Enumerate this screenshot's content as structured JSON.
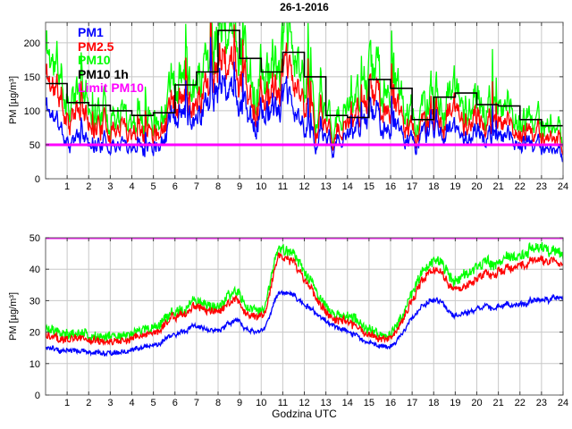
{
  "style": {
    "background": "#ffffff",
    "grid_color": "#c8c8c8",
    "axis_color": "#606060",
    "tick_color": "#404040",
    "text_color": "#000000"
  },
  "chart_data": [
    {
      "type": "line",
      "title": "26-1-2016",
      "ylabel": "PM [µg/m³]",
      "xlabel": "",
      "xlim": [
        0,
        24
      ],
      "ylim": [
        0,
        230
      ],
      "xticks": [
        1,
        2,
        3,
        4,
        5,
        6,
        7,
        8,
        9,
        10,
        11,
        12,
        13,
        14,
        15,
        16,
        17,
        18,
        19,
        20,
        21,
        22,
        23,
        24
      ],
      "yticks": [
        0,
        50,
        100,
        150,
        200
      ],
      "grid": true,
      "legend": [
        "PM1",
        "PM2.5",
        "PM10",
        "PM10 1h",
        "Limit PM10"
      ],
      "legend_position": "upper-left",
      "x_hours": [
        0,
        1,
        2,
        3,
        4,
        5,
        6,
        7,
        8,
        9,
        10,
        11,
        12,
        13,
        14,
        15,
        16,
        17,
        18,
        19,
        20,
        21,
        22,
        23,
        24
      ],
      "series": [
        {
          "name": "PM1",
          "color": "#0000ff",
          "kind": "line",
          "jitter": 2.5,
          "gain": 1.0,
          "hourly": [
            105,
            62,
            56,
            53,
            50,
            53,
            88,
            100,
            135,
            105,
            100,
            112,
            78,
            57,
            57,
            88,
            75,
            54,
            77,
            71,
            65,
            63,
            54,
            45,
            38
          ]
        },
        {
          "name": "PM2.5",
          "color": "#ff0000",
          "kind": "line",
          "jitter": 3.0,
          "gain": 1.0,
          "hourly": [
            150,
            100,
            88,
            80,
            73,
            77,
            106,
            125,
            168,
            140,
            125,
            144,
            117,
            74,
            72,
            113,
            104,
            70,
            92,
            98,
            86,
            83,
            69,
            61,
            53
          ]
        },
        {
          "name": "PM10",
          "color": "#00ff00",
          "kind": "line",
          "jitter": 4.0,
          "gain": 1.08,
          "hourly": [
            190,
            128,
            112,
            100,
            92,
            98,
            135,
            160,
            215,
            180,
            160,
            185,
            150,
            95,
            92,
            145,
            133,
            90,
            118,
            126,
            110,
            106,
            88,
            78,
            68
          ]
        },
        {
          "name": "PM10 1h",
          "color": "#000000",
          "kind": "step",
          "hourly": [
            140,
            112,
            108,
            100,
            93,
            97,
            138,
            157,
            218,
            177,
            157,
            186,
            150,
            93,
            90,
            146,
            133,
            87,
            120,
            126,
            109,
            107,
            87,
            78
          ]
        },
        {
          "name": "Limit PM10",
          "color": "#ff00ff",
          "kind": "hline",
          "value": 50
        }
      ],
      "noise": {
        "seed": 11,
        "walk": 0.34,
        "decay": 0.78,
        "spike_p": 0.02,
        "vcap": 258
      }
    },
    {
      "type": "line",
      "title": "",
      "ylabel": "PM [µg/m³]",
      "xlabel": "Godzina UTC",
      "xlim": [
        0,
        24
      ],
      "ylim": [
        0,
        50
      ],
      "xticks": [
        1,
        2,
        3,
        4,
        5,
        6,
        7,
        8,
        9,
        10,
        11,
        12,
        13,
        14,
        15,
        16,
        17,
        18,
        19,
        20,
        21,
        22,
        23,
        24
      ],
      "yticks": [
        0,
        10,
        20,
        30,
        40,
        50
      ],
      "grid": true,
      "legend": [],
      "x_hours": [
        0,
        1,
        2,
        3,
        4,
        5,
        6,
        7,
        8,
        9,
        10,
        11,
        12,
        13,
        14,
        15,
        16,
        17,
        18,
        19,
        20,
        21,
        22,
        23,
        24
      ],
      "series": [
        {
          "name": "PM1",
          "color": "#0000ff",
          "kind": "line",
          "jitter": 0.7,
          "gain": 0.85,
          "hourly": [
            15,
            14.5,
            14,
            13.8,
            14,
            16,
            19,
            21.5,
            20.5,
            22.5,
            20.5,
            33,
            28,
            24,
            20,
            16.8,
            15.3,
            24.5,
            31,
            25,
            26.5,
            27.8,
            29.3,
            30.5,
            29
          ]
        },
        {
          "name": "PM2.5",
          "color": "#ff0000",
          "kind": "line",
          "jitter": 1.1,
          "gain": 1.0,
          "hourly": [
            19,
            18.5,
            18,
            17.5,
            17.5,
            20,
            24.5,
            27.5,
            26.5,
            28.5,
            25.5,
            44.5,
            35.5,
            27,
            23,
            19.5,
            18,
            30.5,
            41,
            33,
            35.5,
            38.5,
            42,
            43.5,
            38.5
          ]
        },
        {
          "name": "PM10",
          "color": "#00ff00",
          "kind": "line",
          "jitter": 1.5,
          "gain": 1.0,
          "hourly": [
            21,
            20,
            19.5,
            19,
            19,
            22,
            26,
            29,
            28,
            31,
            27.5,
            47,
            38,
            29,
            25,
            21,
            19,
            33,
            44,
            36,
            39,
            42,
            45.5,
            47,
            42
          ]
        },
        {
          "name": "Limit PM10",
          "color": "#ff00ff",
          "kind": "hline",
          "value": 50
        }
      ],
      "noise": {
        "seed": 77,
        "walk": 0.032,
        "decay": 0.93,
        "spike_p": 0,
        "vcap": 49.3
      }
    }
  ]
}
